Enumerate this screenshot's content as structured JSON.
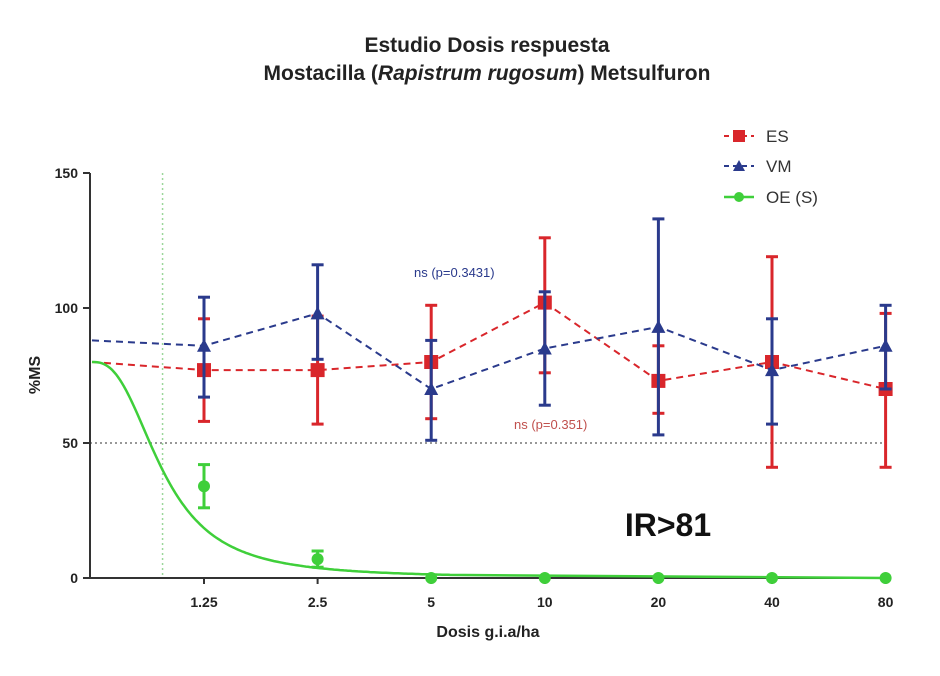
{
  "chart_data": {
    "type": "line",
    "title_line1": "Estudio Dosis respuesta",
    "title_line2": {
      "prefix": "Mostacilla (",
      "italic": "Rapistrum rugosum",
      "suffix": ") Metsulfuron"
    },
    "xlabel": "Dosis  g.i.a/ha",
    "ylabel": "%MS",
    "categories": [
      "1.25",
      "2.5",
      "5",
      "10",
      "20",
      "40",
      "80"
    ],
    "ylim": [
      0,
      150
    ],
    "yticks": [
      0,
      50,
      100,
      150
    ],
    "reference_line_y": 50,
    "series": [
      {
        "name": "ES",
        "color": "#d9262b",
        "marker": "square",
        "linestyle": "dashed",
        "start_value": 80,
        "values": [
          77,
          77,
          80,
          102,
          73,
          80,
          70
        ],
        "err_low": [
          58,
          57,
          59,
          76,
          61,
          41,
          41
        ],
        "err_high": [
          96,
          97,
          101,
          126,
          86,
          119,
          98
        ]
      },
      {
        "name": "VM",
        "color": "#2a3a8c",
        "marker": "triangle",
        "linestyle": "dashed",
        "start_value": 88,
        "values": [
          86,
          98,
          70,
          85,
          93,
          77,
          86
        ],
        "err_low": [
          67,
          81,
          51,
          64,
          53,
          57,
          70
        ],
        "err_high": [
          104,
          116,
          88,
          106,
          133,
          96,
          101
        ]
      },
      {
        "name": "OE (S)",
        "color": "#3fcf3a",
        "marker": "circle",
        "linestyle": "solid",
        "values": [
          34,
          7,
          0,
          0,
          0,
          0,
          0
        ],
        "err_low": [
          26,
          4,
          0,
          0,
          0,
          0,
          0
        ],
        "err_high": [
          42,
          10,
          0,
          0,
          0,
          0,
          0
        ],
        "fit_curve": true
      }
    ],
    "annotations": [
      {
        "text": "ns (p=0.3431)",
        "color": "#2a3a8c"
      },
      {
        "text": "ns (p=0.351)",
        "color": "#c0504d"
      },
      {
        "text": "IR>81",
        "color": "#111111"
      }
    ],
    "legend_position": "top-right",
    "grid": false
  }
}
